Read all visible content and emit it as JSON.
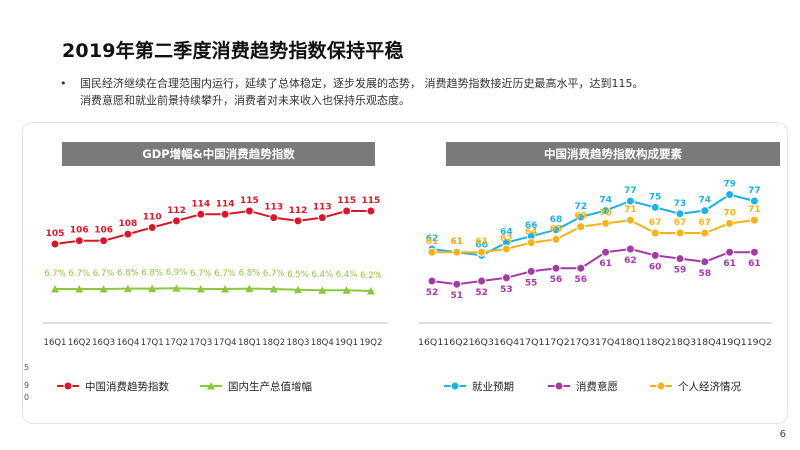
{
  "slide": {
    "title": "2019年第二季度消费趋势指数保持平稳",
    "bullet": "•",
    "bullet_text_line1": "国民经济继续在合理范围内运行，延续了总体稳定，逐步发展的态势，  消费趋势指数接近历史最高水平，达到115。",
    "bullet_text_line2": "消费意愿和就业前景持续攀升，消费者对未来收入也保持乐观态度。",
    "page_number": "6",
    "stray_marks": [
      "5",
      "9",
      "0"
    ]
  },
  "chart_data": [
    {
      "type": "line",
      "title": "GDP增幅&中国消费趋势指数",
      "categories": [
        "16Q1",
        "16Q2",
        "16Q3",
        "16Q4",
        "17Q1",
        "17Q2",
        "17Q3",
        "17Q4",
        "18Q1",
        "18Q2",
        "18Q3",
        "18Q4",
        "19Q1",
        "19Q2"
      ],
      "series": [
        {
          "name": "中国消费趋势指数",
          "color": "#d7182a",
          "marker": "circle",
          "values": [
            105,
            106,
            106,
            108,
            110,
            112,
            114,
            114,
            115,
            113,
            112,
            113,
            115,
            115
          ],
          "labels": [
            "105",
            "106",
            "106",
            "108",
            "110",
            "112",
            "114",
            "114",
            "115",
            "113",
            "112",
            "113",
            "115",
            "115"
          ]
        },
        {
          "name": "国内生产总值增幅",
          "color": "#8dc63f",
          "marker": "triangle",
          "values": [
            6.7,
            6.7,
            6.7,
            6.8,
            6.8,
            6.9,
            6.7,
            6.7,
            6.8,
            6.7,
            6.5,
            6.4,
            6.4,
            6.2
          ],
          "labels": [
            "6.7%",
            "6.7%",
            "6.7%",
            "6.8%",
            "6.8%",
            "6.9%",
            "6.7%",
            "6.7%",
            "6.8%",
            "6.7%",
            "6.5%",
            "6.4%",
            "6.4%",
            "6.2%"
          ]
        }
      ],
      "legend_position": "bottom"
    },
    {
      "type": "line",
      "title": "中国消费趋势指数构成要素",
      "categories": [
        "16Q1",
        "16Q2",
        "16Q3",
        "16Q4",
        "17Q1",
        "17Q2",
        "17Q3",
        "17Q4",
        "18Q1",
        "18Q2",
        "18Q3",
        "18Q4",
        "19Q1",
        "19Q2"
      ],
      "x_axis_label_text": "16Q116Q216Q316Q417Q117Q217Q317Q418Q118Q218Q318Q419Q119Q2",
      "series": [
        {
          "name": "就业预期",
          "color": "#1fb1e6",
          "marker": "circle",
          "values": [
            62,
            61,
            60,
            64,
            66,
            68,
            72,
            74,
            77,
            75,
            73,
            74,
            79,
            77
          ],
          "labels": [
            "62",
            "61",
            "60",
            "64",
            "66",
            "68",
            "72",
            "74",
            "77",
            "75",
            "73",
            "74",
            "79",
            "77"
          ]
        },
        {
          "name": "消费意愿",
          "color": "#a43aa7",
          "marker": "circle",
          "values": [
            52,
            51,
            52,
            53,
            55,
            56,
            56,
            61,
            62,
            60,
            59,
            58,
            61,
            61
          ],
          "labels": [
            "52",
            "51",
            "52",
            "53",
            "55",
            "56",
            "56",
            "61",
            "62",
            "60",
            "59",
            "58",
            "61",
            "61"
          ]
        },
        {
          "name": "个人经济情况",
          "color": "#f5b31a",
          "marker": "circle",
          "values": [
            61,
            61,
            61,
            62,
            64,
            65,
            69,
            70,
            71,
            67,
            67,
            67,
            70,
            71
          ],
          "labels": [
            "61",
            "61",
            "61",
            "62",
            "64",
            "65",
            "69",
            "70",
            "71",
            "67",
            "67",
            "67",
            "70",
            "71"
          ]
        }
      ],
      "legend_position": "bottom"
    }
  ]
}
